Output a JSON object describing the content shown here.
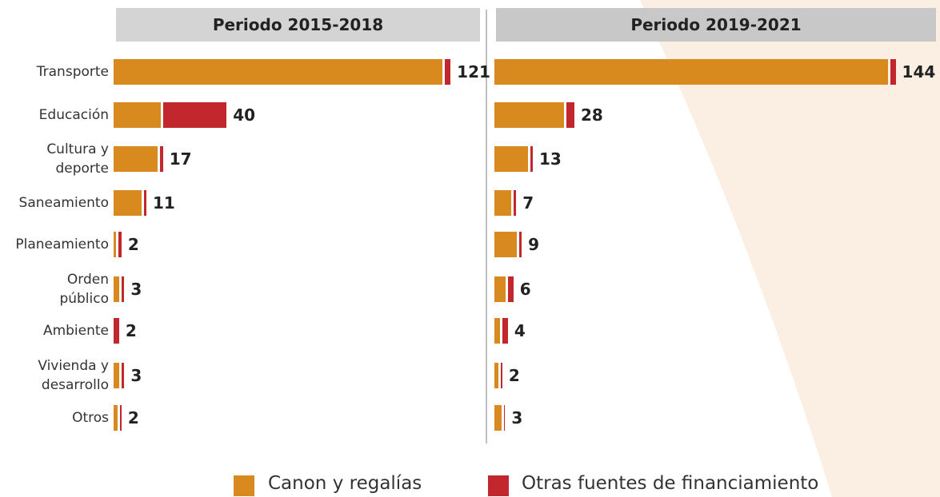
{
  "chart_data": [
    {
      "type": "bar",
      "orientation": "horizontal",
      "stacked": true,
      "title": "Periodo 2015-2018",
      "categories": [
        "Transporte",
        "Educación",
        "Cultura y\ndeporte",
        "Saneamiento",
        "Planeamiento",
        "Orden\npúblico",
        "Ambiente",
        "Vivienda y\ndesarrollo",
        "Otros"
      ],
      "series": [
        {
          "name": "Canon y regalías",
          "color": "#d98a1e",
          "values": [
            119,
            17,
            16,
            10,
            1,
            2,
            0,
            2,
            1.5
          ]
        },
        {
          "name": "Otras fuentes de financiamiento",
          "color": "#c1272d",
          "values": [
            2,
            23,
            1,
            1,
            1,
            1,
            2,
            1,
            0.5
          ]
        }
      ],
      "totals": [
        121,
        40,
        17,
        11,
        2,
        3,
        2,
        3,
        2
      ],
      "xlim": [
        0,
        125
      ]
    },
    {
      "type": "bar",
      "orientation": "horizontal",
      "stacked": true,
      "title": "Periodo 2019-2021",
      "series": [
        {
          "name": "Canon y regalías",
          "color": "#d98a1e",
          "values": [
            142,
            25,
            12,
            6,
            8,
            4,
            2,
            1.5,
            2.5
          ]
        },
        {
          "name": "Otras fuentes de financiamiento",
          "color": "#c1272d",
          "values": [
            2,
            3,
            1,
            1,
            1,
            2,
            2,
            0.5,
            0.5
          ]
        }
      ],
      "totals": [
        144,
        28,
        13,
        7,
        9,
        6,
        4,
        2,
        3
      ],
      "xlim": [
        0,
        145
      ]
    }
  ]
}
